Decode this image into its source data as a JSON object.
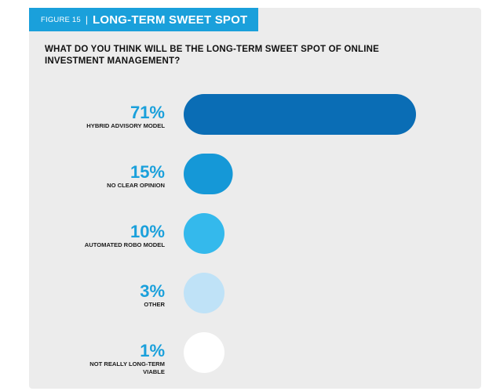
{
  "figure": {
    "number": "FIGURE 15",
    "separator": "|",
    "title": "LONG-TERM SWEET SPOT"
  },
  "question": "WHAT DO YOU THINK WILL BE THE LONG-TERM SWEET SPOT OF ONLINE INVESTMENT MANAGEMENT?",
  "colors": {
    "tab_bg": "#1aa0db",
    "panel_bg": "#ececec",
    "percent_text": "#1aa0db"
  },
  "chart_data": {
    "type": "bar",
    "orientation": "horizontal",
    "categories": [
      "HYBRID ADVISORY MODEL",
      "NO CLEAR OPINION",
      "AUTOMATED ROBO MODEL",
      "OTHER",
      "NOT REALLY LONG-TERM VIABLE"
    ],
    "values": [
      71,
      15,
      10,
      3,
      1
    ],
    "value_labels": [
      "71%",
      "15%",
      "10%",
      "3%",
      "1%"
    ],
    "bar_colors": [
      "#0a6db5",
      "#1598d7",
      "#34b9ec",
      "#bfe2f7",
      "#ffffff"
    ],
    "grid": false,
    "legend": "none"
  }
}
